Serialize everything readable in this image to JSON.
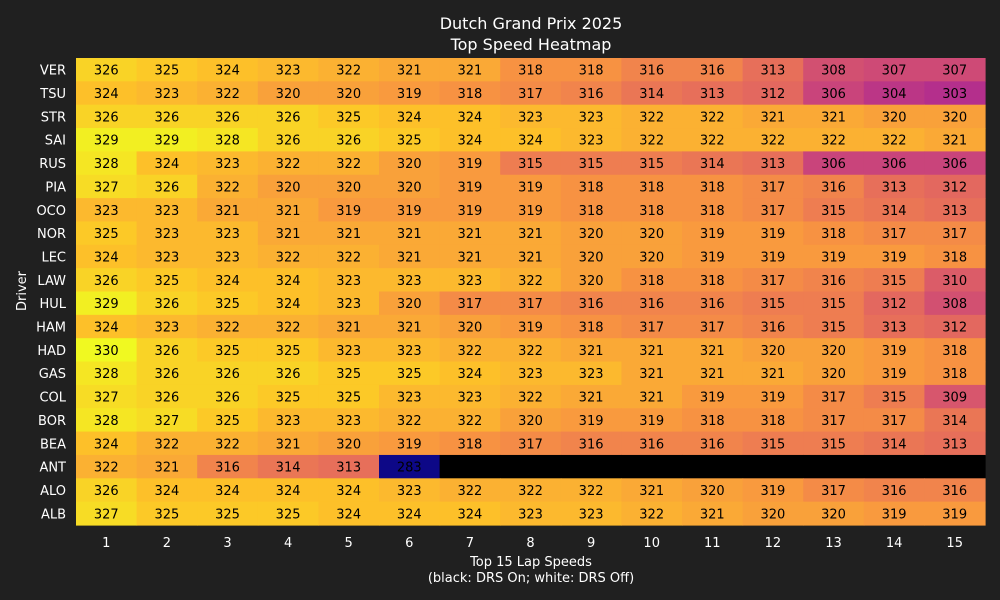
{
  "chart_data": {
    "type": "heatmap",
    "title": "Dutch Grand Prix 2025",
    "subtitle": "Top Speed Heatmap",
    "xlabel": "Top 15 Lap Speeds",
    "xlabel_note": "(black: DRS On; white: DRS Off)",
    "ylabel": "Driver",
    "x": [
      "1",
      "2",
      "3",
      "4",
      "5",
      "6",
      "7",
      "8",
      "9",
      "10",
      "11",
      "12",
      "13",
      "14",
      "15"
    ],
    "y": [
      "VER",
      "TSU",
      "STR",
      "SAI",
      "RUS",
      "PIA",
      "OCO",
      "NOR",
      "LEC",
      "LAW",
      "HUL",
      "HAM",
      "HAD",
      "GAS",
      "COL",
      "BOR",
      "BEA",
      "ANT",
      "ALO",
      "ALB"
    ],
    "colormap": "plasma",
    "value_range": [
      283,
      330
    ],
    "text_colors": {
      "drs_on": "#000000",
      "drs_off": "#ffffff"
    },
    "missing_color": "#000000",
    "grid": false,
    "values": [
      [
        326,
        325,
        324,
        323,
        322,
        321,
        321,
        318,
        318,
        316,
        316,
        313,
        308,
        307,
        307
      ],
      [
        324,
        323,
        322,
        320,
        320,
        319,
        318,
        317,
        316,
        314,
        313,
        312,
        306,
        304,
        303
      ],
      [
        326,
        326,
        326,
        326,
        325,
        324,
        324,
        323,
        323,
        322,
        322,
        321,
        321,
        320,
        320
      ],
      [
        329,
        329,
        328,
        326,
        326,
        325,
        324,
        324,
        323,
        322,
        322,
        322,
        322,
        322,
        321
      ],
      [
        328,
        324,
        323,
        322,
        322,
        320,
        319,
        315,
        315,
        315,
        314,
        313,
        306,
        306,
        306
      ],
      [
        327,
        326,
        322,
        320,
        320,
        320,
        319,
        319,
        318,
        318,
        318,
        317,
        316,
        313,
        312
      ],
      [
        323,
        323,
        321,
        321,
        319,
        319,
        319,
        319,
        318,
        318,
        318,
        317,
        315,
        314,
        313
      ],
      [
        325,
        323,
        323,
        321,
        321,
        321,
        321,
        321,
        320,
        320,
        319,
        319,
        318,
        317,
        317
      ],
      [
        324,
        323,
        323,
        322,
        322,
        321,
        321,
        321,
        320,
        320,
        319,
        319,
        319,
        319,
        318
      ],
      [
        326,
        325,
        324,
        324,
        323,
        323,
        323,
        322,
        320,
        318,
        318,
        317,
        316,
        315,
        310
      ],
      [
        329,
        326,
        325,
        324,
        323,
        320,
        317,
        317,
        316,
        316,
        316,
        315,
        315,
        312,
        308
      ],
      [
        324,
        323,
        322,
        322,
        321,
        321,
        320,
        319,
        318,
        317,
        317,
        316,
        315,
        313,
        312
      ],
      [
        330,
        326,
        325,
        325,
        323,
        323,
        322,
        322,
        321,
        321,
        321,
        320,
        320,
        319,
        318
      ],
      [
        328,
        326,
        326,
        326,
        325,
        325,
        324,
        323,
        323,
        321,
        321,
        321,
        320,
        319,
        318
      ],
      [
        327,
        326,
        326,
        325,
        325,
        323,
        323,
        322,
        321,
        321,
        319,
        319,
        317,
        315,
        309
      ],
      [
        328,
        327,
        325,
        323,
        323,
        322,
        322,
        320,
        319,
        319,
        318,
        318,
        317,
        317,
        314
      ],
      [
        324,
        322,
        322,
        321,
        320,
        319,
        318,
        317,
        316,
        316,
        316,
        315,
        315,
        314,
        313
      ],
      [
        322,
        321,
        316,
        314,
        313,
        283,
        null,
        null,
        null,
        null,
        null,
        null,
        null,
        null,
        null
      ],
      [
        326,
        324,
        324,
        324,
        324,
        323,
        322,
        322,
        322,
        321,
        320,
        319,
        317,
        316,
        316
      ],
      [
        327,
        325,
        325,
        325,
        324,
        324,
        324,
        323,
        323,
        322,
        321,
        320,
        320,
        319,
        319
      ]
    ],
    "drs_on": [
      [
        true,
        true,
        true,
        true,
        true,
        true,
        true,
        true,
        true,
        true,
        true,
        true,
        true,
        true,
        true
      ],
      [
        true,
        true,
        true,
        true,
        true,
        true,
        true,
        true,
        true,
        true,
        true,
        true,
        true,
        true,
        true
      ],
      [
        true,
        true,
        true,
        true,
        true,
        true,
        true,
        true,
        true,
        true,
        true,
        true,
        true,
        true,
        true
      ],
      [
        true,
        true,
        true,
        true,
        true,
        true,
        true,
        true,
        true,
        true,
        true,
        true,
        true,
        true,
        true
      ],
      [
        true,
        true,
        true,
        true,
        true,
        true,
        true,
        true,
        true,
        true,
        true,
        true,
        true,
        true,
        true
      ],
      [
        true,
        true,
        true,
        true,
        true,
        true,
        true,
        true,
        true,
        true,
        true,
        true,
        true,
        true,
        true
      ],
      [
        true,
        true,
        true,
        true,
        true,
        true,
        true,
        true,
        true,
        true,
        true,
        true,
        true,
        true,
        true
      ],
      [
        true,
        true,
        true,
        true,
        true,
        true,
        true,
        true,
        true,
        true,
        true,
        true,
        true,
        true,
        true
      ],
      [
        true,
        true,
        true,
        true,
        true,
        true,
        true,
        true,
        true,
        true,
        true,
        true,
        true,
        true,
        true
      ],
      [
        true,
        true,
        true,
        true,
        true,
        true,
        true,
        true,
        true,
        true,
        true,
        true,
        true,
        true,
        true
      ],
      [
        true,
        true,
        true,
        true,
        true,
        true,
        true,
        true,
        true,
        true,
        true,
        true,
        true,
        true,
        true
      ],
      [
        true,
        true,
        true,
        true,
        true,
        true,
        true,
        true,
        true,
        true,
        true,
        true,
        true,
        true,
        true
      ],
      [
        true,
        true,
        true,
        true,
        true,
        true,
        true,
        true,
        true,
        true,
        true,
        true,
        true,
        true,
        true
      ],
      [
        true,
        true,
        true,
        true,
        true,
        true,
        true,
        true,
        true,
        true,
        true,
        true,
        true,
        true,
        true
      ],
      [
        true,
        true,
        true,
        true,
        true,
        true,
        true,
        true,
        true,
        true,
        true,
        true,
        true,
        true,
        true
      ],
      [
        true,
        true,
        true,
        true,
        true,
        true,
        true,
        true,
        true,
        true,
        true,
        true,
        true,
        true,
        true
      ],
      [
        true,
        true,
        true,
        true,
        true,
        true,
        true,
        true,
        true,
        true,
        true,
        true,
        true,
        true,
        true
      ],
      [
        true,
        true,
        true,
        true,
        true,
        true,
        null,
        null,
        null,
        null,
        null,
        null,
        null,
        null,
        null
      ],
      [
        true,
        true,
        true,
        true,
        true,
        true,
        true,
        true,
        true,
        true,
        true,
        true,
        true,
        true,
        true
      ],
      [
        true,
        true,
        true,
        true,
        true,
        true,
        true,
        true,
        true,
        true,
        true,
        true,
        true,
        true,
        true
      ]
    ]
  }
}
